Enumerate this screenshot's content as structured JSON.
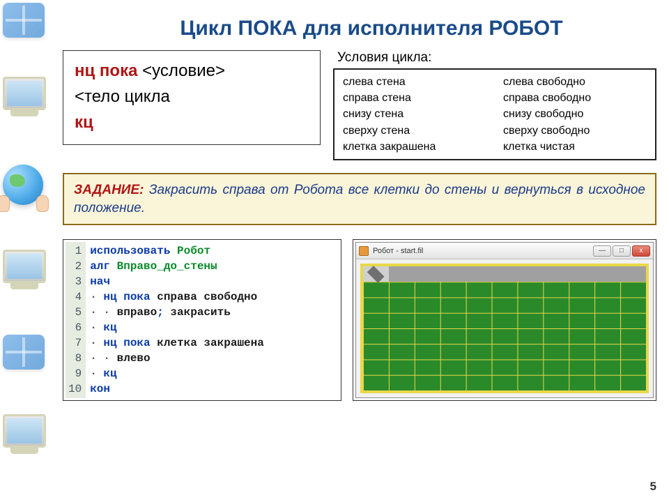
{
  "title": "Цикл ПОКА для исполнителя РОБОТ",
  "syntax": {
    "l1_kw": "нц пока",
    "l1_rest": "  <условие>",
    "l2": "   <тело цикла",
    "l3_kw": " кц"
  },
  "conditions": {
    "title": "Условия цикла:",
    "col1": [
      "слева стена",
      "справа стена",
      "снизу  стена",
      "сверху  стена",
      "клетка  закрашена"
    ],
    "col2": [
      "слева  свободно",
      "справа  свободно",
      "снизу  свободно",
      "сверху  свободно",
      "клетка  чистая"
    ]
  },
  "task": {
    "label": "ЗАДАНИЕ:",
    "text": "   Закрасить справа от Робота все клетки до стены и вернуться в исходное положение."
  },
  "code": {
    "lines": [
      {
        "n": 1,
        "tokens": [
          {
            "t": "использовать ",
            "c": "tk-kw"
          },
          {
            "t": "Робот",
            "c": "tk-name"
          }
        ]
      },
      {
        "n": 2,
        "tokens": [
          {
            "t": "алг ",
            "c": "tk-kw"
          },
          {
            "t": "Вправо_до_стены",
            "c": "tk-name"
          }
        ]
      },
      {
        "n": 3,
        "tokens": [
          {
            "t": "нач",
            "c": "tk-kw"
          }
        ]
      },
      {
        "n": 4,
        "tokens": [
          {
            "t": "· ",
            "c": "dot"
          },
          {
            "t": "нц пока ",
            "c": "tk-kw"
          },
          {
            "t": "справа свободно",
            "c": "tk-cmd"
          }
        ]
      },
      {
        "n": 5,
        "tokens": [
          {
            "t": "· · ",
            "c": "dot"
          },
          {
            "t": "вправо",
            "c": "tk-cmd"
          },
          {
            "t": "; ",
            "c": "tk-kw"
          },
          {
            "t": "закрасить",
            "c": "tk-cmd"
          }
        ]
      },
      {
        "n": 6,
        "tokens": [
          {
            "t": "· ",
            "c": "dot"
          },
          {
            "t": "кц",
            "c": "tk-kw"
          }
        ]
      },
      {
        "n": 7,
        "tokens": [
          {
            "t": "· ",
            "c": "dot"
          },
          {
            "t": "нц пока ",
            "c": "tk-kw"
          },
          {
            "t": "клетка закрашена",
            "c": "tk-cmd"
          }
        ]
      },
      {
        "n": 8,
        "tokens": [
          {
            "t": "· · ",
            "c": "dot"
          },
          {
            "t": "влево",
            "c": "tk-cmd"
          }
        ]
      },
      {
        "n": 9,
        "tokens": [
          {
            "t": "· ",
            "c": "dot"
          },
          {
            "t": "кц",
            "c": "tk-kw"
          }
        ]
      },
      {
        "n": 10,
        "tokens": [
          {
            "t": "кон",
            "c": "tk-kw"
          }
        ]
      }
    ]
  },
  "robot_window": {
    "title": "Робот - start.fil",
    "btn_min": "—",
    "btn_max": "□",
    "btn_close": "x",
    "grid": {
      "cols": 11,
      "rows": 8
    },
    "robot_pos": {
      "col": 0,
      "row": 0
    },
    "painted": {
      "row": 0,
      "col_start": 1,
      "col_end": 11
    },
    "colors": {
      "border": "#e8d84a",
      "field": "#2a8a2a",
      "painted": "#a0a0a0",
      "robot_cell": "#d0d0d0",
      "robot_glyph": "#707070"
    }
  },
  "page_number": "5"
}
